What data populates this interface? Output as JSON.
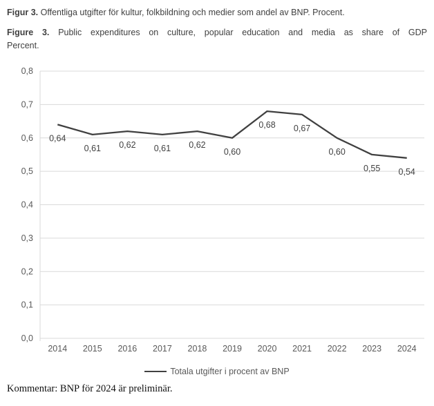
{
  "header": {
    "sv": {
      "label": "Figur 3.",
      "text": "Offentliga utgifter för kultur, folkbildning och medier som andel av BNP. Procent."
    },
    "en": {
      "label": "Figure 3.",
      "text_line1": "Public expenditures on culture, popular education and media as share of GDP",
      "text_line2": "Percent."
    }
  },
  "chart_data": {
    "type": "line",
    "title": "",
    "xlabel": "",
    "ylabel": "",
    "categories": [
      "2014",
      "2015",
      "2016",
      "2017",
      "2018",
      "2019",
      "2020",
      "2021",
      "2022",
      "2023",
      "2024"
    ],
    "series": [
      {
        "name": "Totala utgifter i procent av BNP",
        "values": [
          0.64,
          0.61,
          0.62,
          0.61,
          0.62,
          0.6,
          0.68,
          0.67,
          0.6,
          0.55,
          0.54
        ]
      }
    ],
    "data_labels": [
      "0,64",
      "0,61",
      "0,62",
      "0,61",
      "0,62",
      "0,60",
      "0,68",
      "0,67",
      "0,60",
      "0,55",
      "0,54"
    ],
    "ylim": [
      0,
      0.8
    ],
    "ytick_labels": [
      "0,0",
      "0,1",
      "0,2",
      "0,3",
      "0,4",
      "0,5",
      "0,6",
      "0,7",
      "0,8"
    ],
    "grid": true,
    "legend_position": "bottom",
    "colors": {
      "line": "#404040",
      "grid": "#d9d9d9",
      "axis_text": "#595959",
      "data_label": "#404040"
    }
  },
  "legend": {
    "label": "Totala utgifter i procent av BNP"
  },
  "footer": {
    "comment": "Kommentar: BNP för 2024 är preliminär."
  }
}
